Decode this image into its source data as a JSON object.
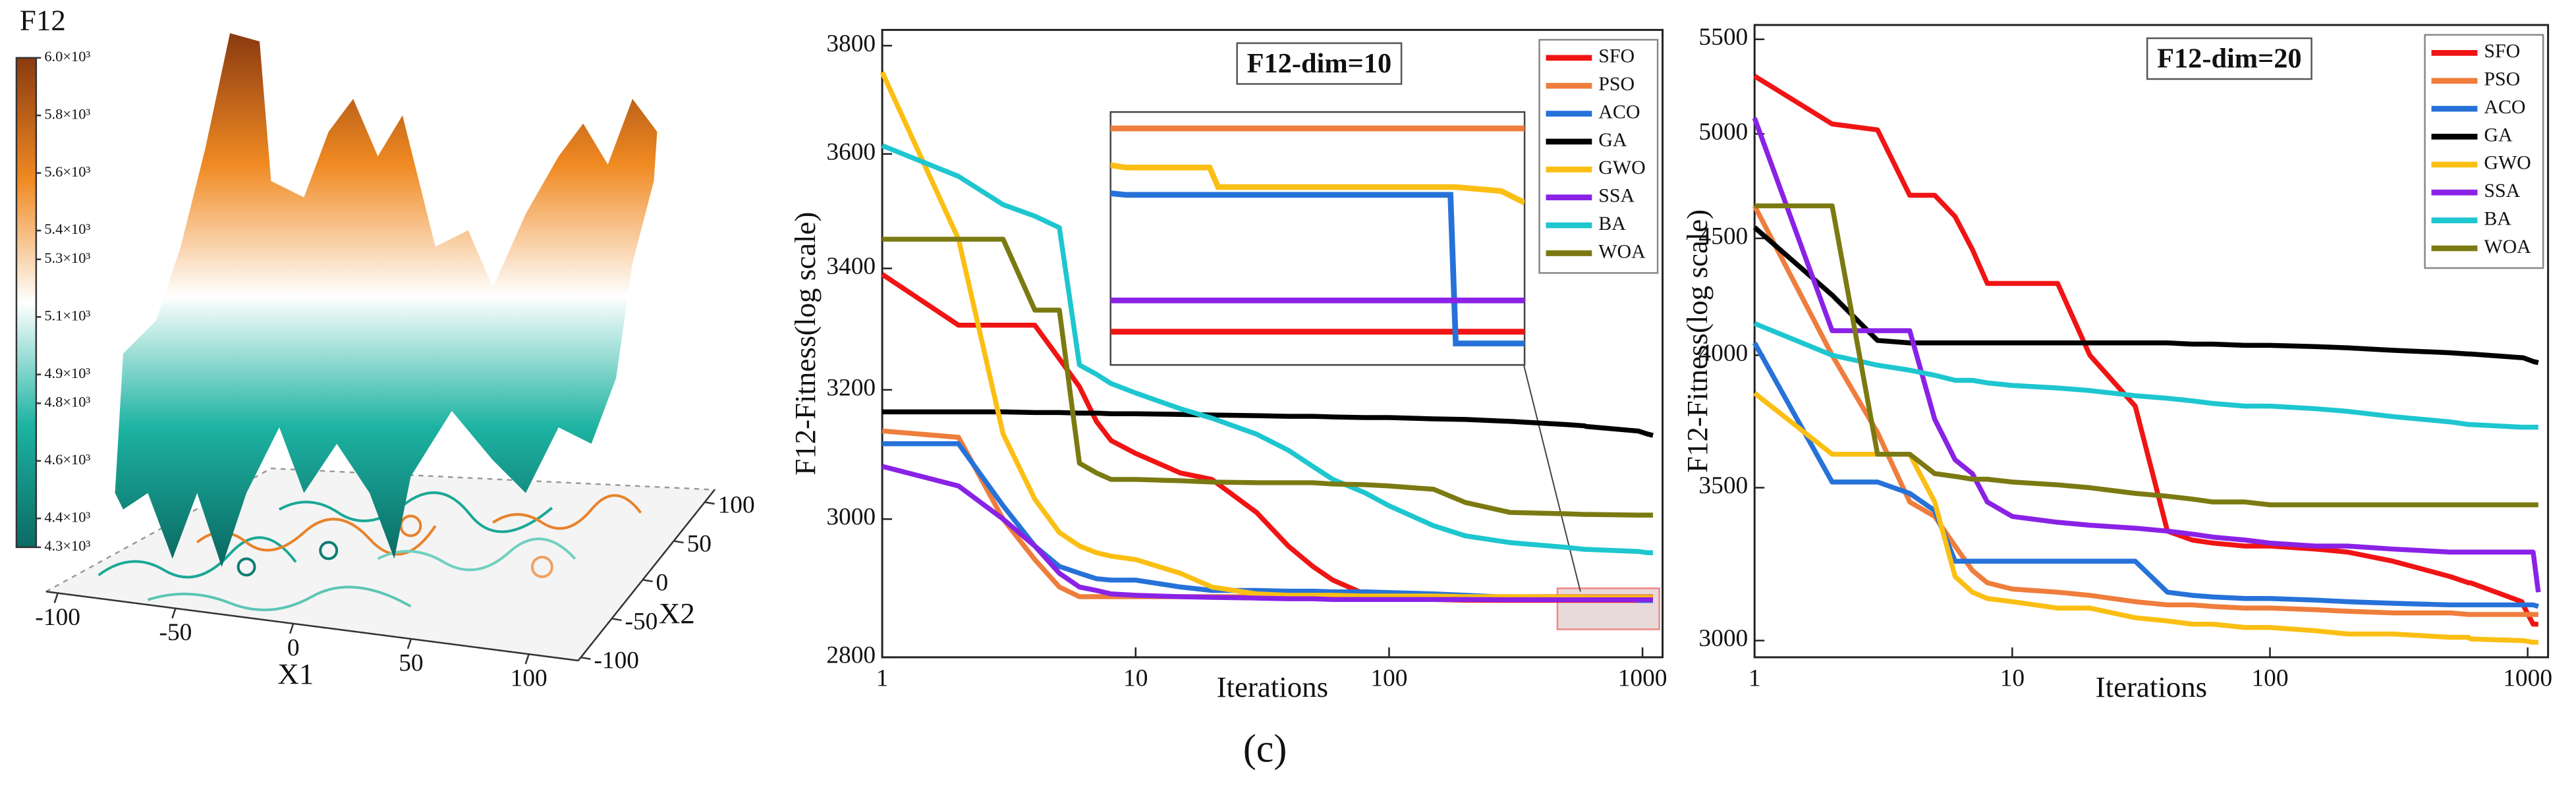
{
  "caption": "(c)",
  "chart_data": [
    {
      "type": "surface3d",
      "title": "F12",
      "xlabel": "X1",
      "ylabel": "X2",
      "xlim": [
        -105,
        121
      ],
      "ylim": [
        -104,
        116
      ],
      "xticks": [
        -100,
        -50,
        0,
        50,
        100
      ],
      "yticks": [
        -100,
        -50,
        0,
        50,
        100
      ],
      "clim": [
        4300,
        6000
      ],
      "colormap": [
        "#0b6b64",
        "#1db3a2",
        "#ffffff",
        "#f08a22",
        "#8a3a10"
      ],
      "colorbar_ticks": [
        {
          "value": 6000,
          "label": "6.0×10³"
        },
        {
          "value": 5800,
          "label": "5.8×10³"
        },
        {
          "value": 5600,
          "label": "5.6×10³"
        },
        {
          "value": 5400,
          "label": "5.4×10³"
        },
        {
          "value": 5300,
          "label": "5.3×10³"
        },
        {
          "value": 5100,
          "label": "5.1×10³"
        },
        {
          "value": 4900,
          "label": "4.9×10³"
        },
        {
          "value": 4800,
          "label": "4.8×10³"
        },
        {
          "value": 4600,
          "label": "4.6×10³"
        },
        {
          "value": 4400,
          "label": "4.4×10³"
        },
        {
          "value": 4300,
          "label": "4.3×10³"
        }
      ]
    },
    {
      "type": "line",
      "title": "F12-dim=10",
      "xlabel": "Iterations",
      "ylabel": "F12-Fitness(log scale)",
      "xscale": "log",
      "yscale": "log",
      "xlim": [
        1,
        1200
      ],
      "ylim": [
        2800,
        3830
      ],
      "xticks": [
        1,
        10,
        100,
        1000
      ],
      "yticks": [
        2800,
        3000,
        3200,
        3400,
        3600,
        3800
      ],
      "legend": "upper right",
      "x": [
        1,
        2,
        3,
        4,
        5,
        6,
        7,
        8,
        10,
        15,
        20,
        30,
        40,
        50,
        60,
        80,
        100,
        150,
        200,
        300,
        500,
        590,
        600,
        950,
        960,
        1050,
        1100
      ],
      "series": [
        {
          "name": "SFO",
          "color": "#f01414",
          "values": [
            3390,
            3305,
            3305,
            3305,
            3250,
            3205,
            3150,
            3120,
            3100,
            3070,
            3060,
            3010,
            2960,
            2930,
            2910,
            2890,
            2884,
            2882,
            2881,
            2880.8,
            2880.8,
            2880.8,
            2880.8,
            2880.8,
            2880.8,
            2880.8,
            2880.8
          ]
        },
        {
          "name": "PSO",
          "color": "#ef7d3c",
          "values": [
            3135,
            3125,
            3000,
            2940,
            2900,
            2886,
            2886,
            2886,
            2886,
            2886,
            2886,
            2886,
            2886,
            2886,
            2886,
            2886,
            2886,
            2886,
            2886,
            2886,
            2886,
            2886,
            2886,
            2886,
            2886,
            2886,
            2886
          ]
        },
        {
          "name": "ACO",
          "color": "#2672d8",
          "values": [
            3115,
            3115,
            3020,
            2960,
            2930,
            2920,
            2912,
            2910,
            2910,
            2900,
            2895,
            2895,
            2894,
            2894,
            2893,
            2893,
            2892,
            2890,
            2888,
            2885,
            2884.3,
            2884.3,
            2884.3,
            2884.3,
            2880.5,
            2880.5,
            2880.5
          ]
        },
        {
          "name": "GA",
          "color": "#000000",
          "values": [
            3165,
            3165,
            3165,
            3164,
            3164,
            3163,
            3163,
            3162,
            3162,
            3161,
            3160,
            3159,
            3158,
            3158,
            3157,
            3156,
            3156,
            3154,
            3153,
            3150,
            3145,
            3143,
            3142,
            3135,
            3135,
            3130,
            3128
          ]
        },
        {
          "name": "GWO",
          "color": "#fbbf14",
          "values": [
            3750,
            3450,
            3130,
            3030,
            2980,
            2960,
            2950,
            2945,
            2940,
            2920,
            2900,
            2890,
            2888,
            2888,
            2888,
            2887,
            2887,
            2887,
            2886,
            2886,
            2885,
            2885,
            2884.5,
            2884.5,
            2884.5,
            2884.4,
            2884.1
          ]
        },
        {
          "name": "SSA",
          "color": "#8a22e6",
          "values": [
            3080,
            3050,
            3000,
            2960,
            2920,
            2900,
            2895,
            2890,
            2888,
            2886,
            2885,
            2884,
            2883,
            2883,
            2882,
            2882,
            2882,
            2882,
            2882,
            2881.6,
            2881.6,
            2881.6,
            2881.6,
            2881.6,
            2881.6,
            2881.6,
            2881.6
          ]
        },
        {
          "name": "BA",
          "color": "#1ec6cf",
          "values": [
            3615,
            3560,
            3510,
            3490,
            3470,
            3240,
            3225,
            3210,
            3195,
            3170,
            3155,
            3130,
            3105,
            3080,
            3060,
            3040,
            3020,
            2990,
            2975,
            2965,
            2958,
            2955,
            2955,
            2952,
            2952,
            2950,
            2950
          ]
        },
        {
          "name": "WOA",
          "color": "#7b7a12",
          "values": [
            3450,
            3450,
            3450,
            3330,
            3330,
            3085,
            3070,
            3060,
            3060,
            3058,
            3056,
            3055,
            3055,
            3055,
            3053,
            3052,
            3050,
            3045,
            3025,
            3010,
            3008,
            3007,
            3007,
            3006,
            3006,
            3006,
            3006
          ]
        }
      ],
      "inset": {
        "xlim": [
          485,
          1100
        ],
        "ylim": [
          2879.95,
          2886.42
        ]
      }
    },
    {
      "type": "line",
      "title": "F12-dim=20",
      "xlabel": "Iterations",
      "ylabel": "F12-Fitness(log scale)",
      "xscale": "log",
      "yscale": "log",
      "xlim": [
        1,
        1200
      ],
      "ylim": [
        2950,
        5580
      ],
      "xticks": [
        1,
        10,
        100,
        1000
      ],
      "yticks": [
        3000,
        3500,
        4000,
        4500,
        5000,
        5500
      ],
      "legend": "upper right",
      "x": [
        1,
        2,
        3,
        4,
        5,
        6,
        7,
        8,
        10,
        15,
        20,
        30,
        40,
        50,
        60,
        80,
        100,
        150,
        200,
        300,
        500,
        590,
        600,
        950,
        960,
        1050,
        1100
      ],
      "series": [
        {
          "name": "SFO",
          "color": "#f01414",
          "values": [
            5300,
            5050,
            5020,
            4700,
            4700,
            4600,
            4450,
            4300,
            4300,
            4300,
            4000,
            3800,
            3350,
            3320,
            3310,
            3300,
            3300,
            3290,
            3280,
            3250,
            3200,
            3180,
            3180,
            3120,
            3110,
            3050,
            3050
          ]
        },
        {
          "name": "PSO",
          "color": "#ef7d3c",
          "values": [
            4650,
            4000,
            3700,
            3450,
            3400,
            3300,
            3220,
            3180,
            3160,
            3150,
            3140,
            3120,
            3110,
            3110,
            3105,
            3100,
            3100,
            3095,
            3090,
            3085,
            3085,
            3080,
            3080,
            3080,
            3080,
            3080,
            3080
          ]
        },
        {
          "name": "ACO",
          "color": "#2672d8",
          "values": [
            4050,
            3520,
            3520,
            3480,
            3420,
            3250,
            3250,
            3250,
            3250,
            3250,
            3250,
            3250,
            3150,
            3140,
            3135,
            3130,
            3130,
            3125,
            3120,
            3115,
            3110,
            3110,
            3110,
            3110,
            3110,
            3110,
            3105
          ]
        },
        {
          "name": "GA",
          "color": "#000000",
          "values": [
            4550,
            4250,
            4060,
            4050,
            4050,
            4050,
            4050,
            4050,
            4050,
            4050,
            4050,
            4050,
            4050,
            4045,
            4045,
            4040,
            4040,
            4035,
            4030,
            4020,
            4010,
            4005,
            4005,
            3990,
            3990,
            3975,
            3970
          ]
        },
        {
          "name": "GWO",
          "color": "#fbbf14",
          "values": [
            3850,
            3620,
            3620,
            3620,
            3450,
            3200,
            3150,
            3130,
            3120,
            3100,
            3100,
            3070,
            3060,
            3050,
            3050,
            3040,
            3040,
            3030,
            3020,
            3020,
            3010,
            3010,
            3005,
            3000,
            3000,
            2995,
            2995
          ]
        },
        {
          "name": "SSA",
          "color": "#8a22e6",
          "values": [
            5080,
            4100,
            4100,
            4100,
            3750,
            3600,
            3550,
            3450,
            3400,
            3380,
            3370,
            3360,
            3350,
            3340,
            3330,
            3320,
            3310,
            3300,
            3300,
            3290,
            3280,
            3280,
            3280,
            3280,
            3280,
            3280,
            3150
          ]
        },
        {
          "name": "BA",
          "color": "#1ec6cf",
          "values": [
            4130,
            4000,
            3960,
            3940,
            3920,
            3900,
            3900,
            3890,
            3880,
            3870,
            3860,
            3840,
            3830,
            3820,
            3810,
            3800,
            3800,
            3790,
            3780,
            3760,
            3740,
            3730,
            3730,
            3720,
            3720,
            3720,
            3720
          ]
        },
        {
          "name": "WOA",
          "color": "#7b7a12",
          "values": [
            4650,
            4650,
            3620,
            3620,
            3550,
            3540,
            3530,
            3530,
            3520,
            3510,
            3500,
            3480,
            3470,
            3460,
            3450,
            3450,
            3440,
            3440,
            3440,
            3440,
            3440,
            3440,
            3440,
            3440,
            3440,
            3440,
            3440
          ]
        }
      ]
    }
  ]
}
